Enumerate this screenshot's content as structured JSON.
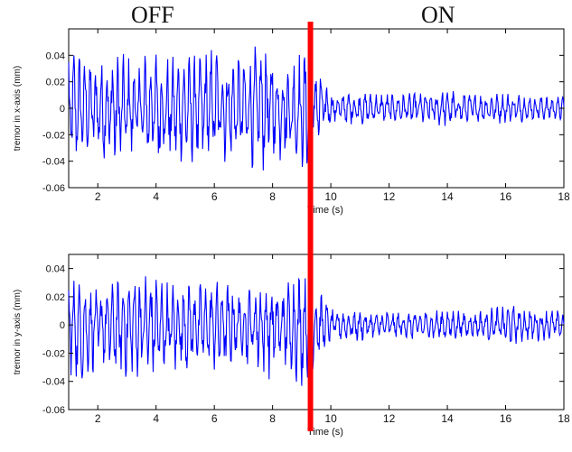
{
  "figure": {
    "off_label": "OFF",
    "on_label": "ON",
    "switch_time_s": 9.3,
    "switch_line_color": "#ff0000",
    "signal_color": "#0000ff"
  },
  "chart_data": [
    {
      "type": "line",
      "title": "",
      "xlabel": "Time (s)",
      "ylabel": "tremor in x-axis (mm)",
      "xlim": [
        1,
        18
      ],
      "ylim": [
        -0.06,
        0.06
      ],
      "xticks": [
        2,
        4,
        6,
        8,
        10,
        12,
        14,
        16,
        18
      ],
      "yticks": [
        -0.06,
        -0.04,
        -0.02,
        0,
        0.02,
        0.04
      ],
      "ytick_labels": [
        "-0.06",
        "-0.04",
        "-0.02",
        "0",
        "0.02",
        "0.04"
      ],
      "grid": false,
      "series": [
        {
          "x": [
            1,
            1.5,
            2,
            2.5,
            3,
            3.5,
            4,
            4.5,
            5,
            5.5,
            6,
            6.5,
            7,
            7.5,
            8,
            8.5,
            9,
            9.3,
            10,
            11,
            12,
            13,
            14,
            15,
            16,
            17,
            18
          ],
          "envelope_upper": [
            0.05,
            0.04,
            0.035,
            0.045,
            0.04,
            0.043,
            0.05,
            0.04,
            0.04,
            0.043,
            0.05,
            0.045,
            0.04,
            0.05,
            0.05,
            0.04,
            0.045,
            0.05,
            0.013,
            0.012,
            0.012,
            0.012,
            0.015,
            0.011,
            0.012,
            0.01,
            0.01
          ],
          "envelope_lower": [
            -0.048,
            -0.035,
            -0.035,
            -0.052,
            -0.045,
            -0.04,
            -0.048,
            -0.045,
            -0.04,
            -0.045,
            -0.04,
            -0.045,
            -0.04,
            -0.052,
            -0.045,
            -0.04,
            -0.055,
            -0.048,
            -0.012,
            -0.013,
            -0.012,
            -0.012,
            -0.015,
            -0.011,
            -0.012,
            -0.01,
            -0.01
          ]
        }
      ]
    },
    {
      "type": "line",
      "title": "",
      "xlabel": "Time (s)",
      "ylabel": "tremor in y-axis (mm)",
      "xlim": [
        1,
        18
      ],
      "ylim": [
        -0.06,
        0.05
      ],
      "xticks": [
        2,
        4,
        6,
        8,
        10,
        12,
        14,
        16,
        18
      ],
      "yticks": [
        -0.06,
        -0.04,
        -0.02,
        0,
        0.02,
        0.04
      ],
      "ytick_labels": [
        "-0.06",
        "-0.04",
        "-0.02",
        "0",
        "0.02",
        "0.04"
      ],
      "grid": false,
      "series": [
        {
          "x": [
            1,
            1.5,
            2,
            2.5,
            3,
            3.5,
            4,
            4.5,
            5,
            5.5,
            6,
            6.5,
            7,
            7.5,
            8,
            8.5,
            9,
            9.3,
            10,
            11,
            12,
            13,
            14,
            15,
            16,
            17,
            18
          ],
          "envelope_upper": [
            0.035,
            0.03,
            0.025,
            0.03,
            0.035,
            0.04,
            0.04,
            0.03,
            0.035,
            0.03,
            0.035,
            0.03,
            0.032,
            0.035,
            0.03,
            0.032,
            0.04,
            0.035,
            0.012,
            0.01,
            0.01,
            0.01,
            0.012,
            0.01,
            0.015,
            0.012,
            0.01
          ],
          "envelope_lower": [
            -0.035,
            -0.045,
            -0.03,
            -0.035,
            -0.04,
            -0.04,
            -0.045,
            -0.04,
            -0.035,
            -0.03,
            -0.035,
            -0.035,
            -0.03,
            -0.035,
            -0.04,
            -0.035,
            -0.045,
            -0.035,
            -0.012,
            -0.012,
            -0.01,
            -0.012,
            -0.012,
            -0.01,
            -0.015,
            -0.012,
            -0.01
          ]
        }
      ]
    }
  ]
}
